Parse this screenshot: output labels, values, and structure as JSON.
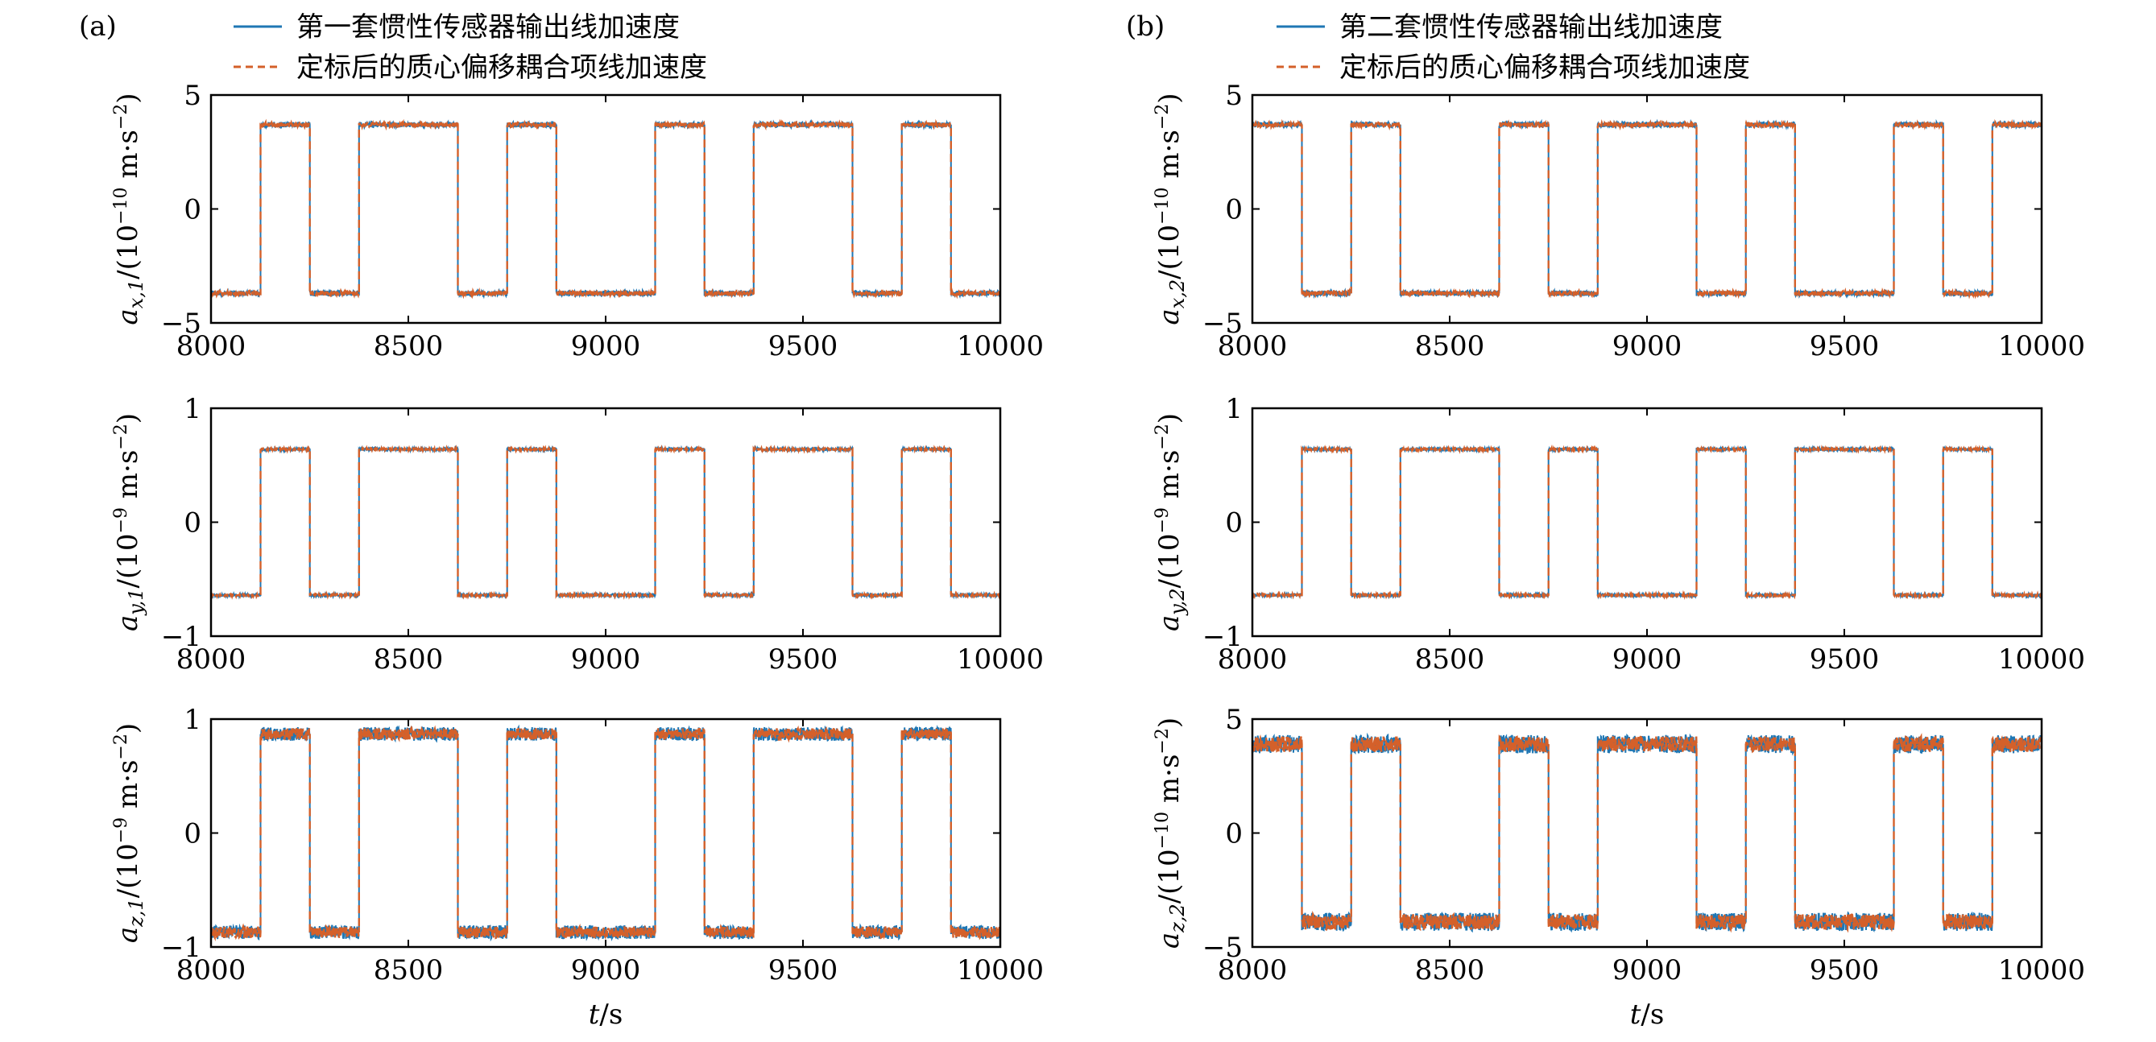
{
  "colors": {
    "measured": "#1f77b4",
    "calibrated": "#d4602a"
  },
  "chart_data": [
    {
      "type": "line",
      "panel": "(a)",
      "legend": [
        "第一套惯性传感器输出线加速度",
        "定标后的质心偏移耦合项线加速度"
      ],
      "ylabel": "a_{x,1}/(10^{-10} m·s^{-2})",
      "ylabel_parts": {
        "sym": "a",
        "sub": "x,1",
        "unit_pre": "/(10",
        "exp": "−10",
        "unit_mid": " m·s",
        "exp2": "−2",
        "unit_post": ")"
      },
      "xlabel": "",
      "xlim": [
        8000,
        10000
      ],
      "ylim": [
        -5,
        5
      ],
      "xticks": [
        "8000",
        "8500",
        "9000",
        "9500",
        "10000"
      ],
      "yticks": [
        "−5",
        "0",
        "5"
      ],
      "ytick_values": [
        -5,
        0,
        5
      ],
      "square_wave": {
        "high": 3.7,
        "low": -3.7,
        "noise": 0.12,
        "start_level": "low",
        "transitions": [
          8125,
          8250,
          8375,
          8625,
          8750,
          8875,
          9125,
          9250,
          9375,
          9625,
          9750,
          9875
        ]
      }
    },
    {
      "type": "line",
      "panel": "(b)",
      "legend": [
        "第二套惯性传感器输出线加速度",
        "定标后的质心偏移耦合项线加速度"
      ],
      "ylabel": "a_{x,2}/(10^{-10} m·s^{-2})",
      "ylabel_parts": {
        "sym": "a",
        "sub": "x,2",
        "unit_pre": "/(10",
        "exp": "−10",
        "unit_mid": " m·s",
        "exp2": "−2",
        "unit_post": ")"
      },
      "xlabel": "",
      "xlim": [
        8000,
        10000
      ],
      "ylim": [
        -5,
        5
      ],
      "xticks": [
        "8000",
        "8500",
        "9000",
        "9500",
        "10000"
      ],
      "yticks": [
        "−5",
        "0",
        "5"
      ],
      "ytick_values": [
        -5,
        0,
        5
      ],
      "square_wave": {
        "high": 3.7,
        "low": -3.7,
        "noise": 0.12,
        "start_level": "high",
        "transitions": [
          8125,
          8250,
          8375,
          8625,
          8750,
          8875,
          9125,
          9250,
          9375,
          9625,
          9750,
          9875
        ]
      }
    },
    {
      "type": "line",
      "panel": "",
      "ylabel": "a_{y,1}/(10^{-9} m·s^{-2})",
      "ylabel_parts": {
        "sym": "a",
        "sub": "y,1",
        "unit_pre": "/(10",
        "exp": "−9",
        "unit_mid": " m·s",
        "exp2": "−2",
        "unit_post": ")"
      },
      "xlabel": "",
      "xlim": [
        8000,
        10000
      ],
      "ylim": [
        -1,
        1
      ],
      "xticks": [
        "8000",
        "8500",
        "9000",
        "9500",
        "10000"
      ],
      "yticks": [
        "−1",
        "0",
        "1"
      ],
      "ytick_values": [
        -1,
        0,
        1
      ],
      "square_wave": {
        "high": 0.64,
        "low": -0.64,
        "noise": 0.012,
        "start_level": "low",
        "transitions": [
          8125,
          8250,
          8375,
          8625,
          8750,
          8875,
          9125,
          9250,
          9375,
          9625,
          9750,
          9875
        ]
      }
    },
    {
      "type": "line",
      "panel": "",
      "ylabel": "a_{y,2}/(10^{-9} m·s^{-2})",
      "ylabel_parts": {
        "sym": "a",
        "sub": "y,2",
        "unit_pre": "/(10",
        "exp": "−9",
        "unit_mid": " m·s",
        "exp2": "−2",
        "unit_post": ")"
      },
      "xlabel": "",
      "xlim": [
        8000,
        10000
      ],
      "ylim": [
        -1,
        1
      ],
      "xticks": [
        "8000",
        "8500",
        "9000",
        "9500",
        "10000"
      ],
      "yticks": [
        "−1",
        "0",
        "1"
      ],
      "ytick_values": [
        -1,
        0,
        1
      ],
      "square_wave": {
        "high": 0.64,
        "low": -0.64,
        "noise": 0.012,
        "start_level": "low",
        "transitions": [
          8125,
          8250,
          8375,
          8625,
          8750,
          8875,
          9125,
          9250,
          9375,
          9625,
          9750,
          9875
        ]
      }
    },
    {
      "type": "line",
      "panel": "",
      "ylabel": "a_{z,1}/(10^{-9} m·s^{-2})",
      "ylabel_parts": {
        "sym": "a",
        "sub": "z,1",
        "unit_pre": "/(10",
        "exp": "−9",
        "unit_mid": " m·s",
        "exp2": "−2",
        "unit_post": ")"
      },
      "xlabel": "t/s",
      "xlim": [
        8000,
        10000
      ],
      "ylim": [
        -1,
        1
      ],
      "xticks": [
        "8000",
        "8500",
        "9000",
        "9500",
        "10000"
      ],
      "yticks": [
        "−1",
        "0",
        "1"
      ],
      "ytick_values": [
        -1,
        0,
        1
      ],
      "square_wave": {
        "high": 0.87,
        "low": -0.87,
        "noise": 0.06,
        "start_level": "low",
        "transitions": [
          8125,
          8250,
          8375,
          8625,
          8750,
          8875,
          9125,
          9250,
          9375,
          9625,
          9750,
          9875
        ]
      }
    },
    {
      "type": "line",
      "panel": "",
      "ylabel": "a_{z,2}/(10^{-10} m·s^{-2})",
      "ylabel_parts": {
        "sym": "a",
        "sub": "z,2",
        "unit_pre": "/(10",
        "exp": "−10",
        "unit_mid": " m·s",
        "exp2": "−2",
        "unit_post": ")"
      },
      "xlabel": "t/s",
      "xlim": [
        8000,
        10000
      ],
      "ylim": [
        -5,
        5
      ],
      "xticks": [
        "8000",
        "8500",
        "9000",
        "9500",
        "10000"
      ],
      "yticks": [
        "−5",
        "0",
        "5"
      ],
      "ytick_values": [
        -5,
        0,
        5
      ],
      "square_wave": {
        "high": 3.9,
        "low": -3.9,
        "noise": 0.4,
        "start_level": "high",
        "transitions": [
          8125,
          8250,
          8375,
          8625,
          8750,
          8875,
          9125,
          9250,
          9375,
          9625,
          9750,
          9875
        ]
      }
    }
  ]
}
